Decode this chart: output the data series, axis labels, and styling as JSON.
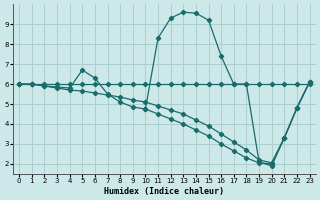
{
  "xlabel": "Humidex (Indice chaleur)",
  "bg_color": "#cde8e8",
  "grid_color": "#aacfcf",
  "line_color": "#1a6b6b",
  "xlim": [
    -0.5,
    23.5
  ],
  "ylim": [
    1.5,
    10.0
  ],
  "yticks": [
    2,
    3,
    4,
    5,
    6,
    7,
    8,
    9
  ],
  "xticks": [
    0,
    1,
    2,
    3,
    4,
    5,
    6,
    7,
    8,
    9,
    10,
    11,
    12,
    13,
    14,
    15,
    16,
    17,
    18,
    19,
    20,
    21,
    22,
    23
  ],
  "line1_x": [
    0,
    1,
    2,
    3,
    4,
    5,
    6,
    7,
    8,
    9,
    10,
    11,
    12,
    13,
    14,
    15,
    16,
    17,
    18,
    19,
    20,
    21,
    22,
    23
  ],
  "line1_y": [
    6.0,
    6.0,
    5.9,
    5.8,
    5.7,
    5.65,
    5.55,
    5.45,
    5.35,
    5.2,
    5.1,
    4.9,
    4.7,
    4.5,
    4.2,
    3.9,
    3.5,
    3.1,
    2.7,
    2.2,
    2.05,
    3.3,
    4.8,
    6.1
  ],
  "line2_x": [
    0,
    1,
    2,
    3,
    4,
    5,
    6,
    7,
    8,
    9,
    10,
    11,
    12,
    13,
    14,
    15,
    16,
    17,
    18,
    19,
    20,
    21,
    22,
    23
  ],
  "line2_y": [
    6.0,
    6.0,
    5.9,
    5.85,
    5.8,
    6.7,
    6.3,
    5.5,
    5.1,
    4.85,
    4.75,
    4.5,
    4.25,
    4.0,
    3.7,
    3.4,
    3.0,
    2.65,
    2.3,
    2.05,
    2.0,
    3.3,
    4.8,
    6.1
  ],
  "line3_x": [
    0,
    1,
    2,
    3,
    4,
    5,
    6,
    7,
    8,
    9,
    10,
    11,
    12,
    13,
    14,
    15,
    16,
    17,
    18,
    19,
    20,
    21,
    22,
    23
  ],
  "line3_y": [
    6.0,
    6.0,
    6.0,
    6.0,
    6.0,
    6.0,
    6.0,
    6.0,
    6.0,
    6.0,
    6.0,
    6.0,
    6.0,
    6.0,
    6.0,
    6.0,
    6.0,
    6.0,
    6.0,
    6.0,
    6.0,
    6.0,
    6.0,
    6.0
  ],
  "line4_x": [
    10,
    11,
    12,
    13,
    14,
    15,
    16,
    17,
    18,
    19,
    20,
    21,
    22,
    23
  ],
  "line4_y": [
    4.75,
    8.3,
    9.3,
    9.6,
    9.55,
    9.2,
    7.4,
    6.0,
    6.0,
    2.1,
    1.9,
    3.3,
    4.8,
    6.1
  ]
}
